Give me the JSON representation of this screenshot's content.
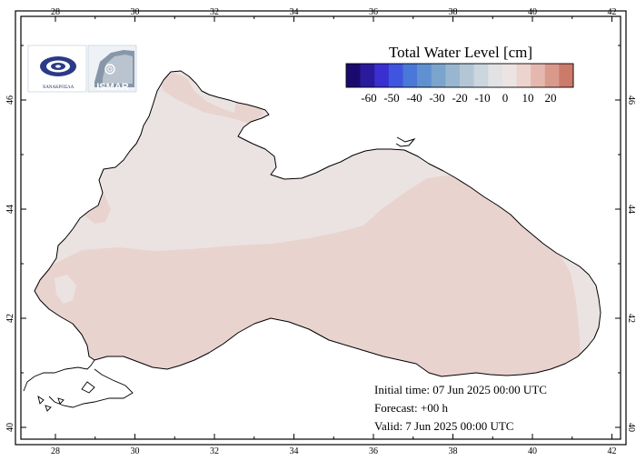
{
  "map": {
    "lon_ticks": [
      "28",
      "30",
      "32",
      "34",
      "36",
      "38",
      "40",
      "42"
    ],
    "lat_ticks": [
      "40",
      "42",
      "44",
      "46"
    ]
  },
  "legend": {
    "title": "Total Water Level [cm]",
    "tick_labels": [
      "-60",
      "-50",
      "-40",
      "-30",
      "-20",
      "-10",
      "0",
      "10",
      "20"
    ],
    "colors": [
      "#1a0a6e",
      "#2a1a9c",
      "#3a30d0",
      "#3f55e0",
      "#4a78d8",
      "#5f90d0",
      "#7aa4cc",
      "#98b6d0",
      "#b4c6d6",
      "#ccd6de",
      "#e2e2e4",
      "#ece4e2",
      "#ecd3ce",
      "#e4b8ae",
      "#d99a8c",
      "#cc7a6a"
    ]
  },
  "logos": {
    "left_caption": "ΧΑΝΑΚΡΟΣΛΑ",
    "right_text": "ISMAR"
  },
  "info": {
    "initial_time": "Initial time: 07 Jun 2025 00:00 UTC",
    "forecast": "Forecast: +00 h",
    "valid": "Valid:  7 Jun 2025 00:00 UTC"
  },
  "field_colors": {
    "sea_pink": "#e9d3cf",
    "sea_light": "#ebe3e2",
    "land": "#ffffff"
  }
}
